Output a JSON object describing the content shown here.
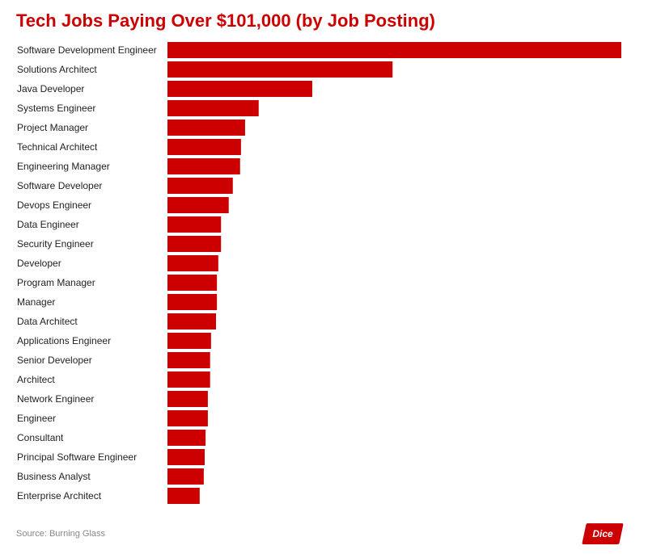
{
  "title": "Tech Jobs Paying Over $101,000 (by Job Posting)",
  "source": "Source: Burning Glass",
  "logo_text": "Dice",
  "colors": {
    "bar": "#cc0000",
    "title": "#cc0000",
    "label": "#222222",
    "source": "#888888"
  },
  "chart_data": {
    "type": "bar",
    "orientation": "horizontal",
    "title": "Tech Jobs Paying Over $101,000 (by Job Posting)",
    "xlabel": "",
    "ylabel": "",
    "grid": false,
    "legend": "none",
    "categories": [
      "Software Development Engineer",
      "Solutions Architect",
      "Java Developer",
      "Systems Engineer",
      "Project Manager",
      "Technical Architect",
      "Engineering Manager",
      "Software Developer",
      "Devops Engineer",
      "Data Engineer",
      "Security Engineer",
      "Developer",
      "Program Manager",
      "Manager",
      "Data Architect",
      "Applications Engineer",
      "Senior Developer",
      "Architect",
      "Network Engineer",
      "Engineer",
      "Consultant",
      "Principal Software Engineer",
      "Business Analyst",
      "Enterprise Architect"
    ],
    "values": [
      100,
      49.6,
      31.9,
      20.1,
      17.1,
      16.2,
      16.0,
      14.4,
      13.5,
      11.8,
      11.8,
      11.2,
      10.9,
      10.9,
      10.7,
      9.6,
      9.4,
      9.4,
      8.9,
      8.9,
      8.4,
      8.2,
      8.0,
      7.1
    ],
    "xlim": [
      0,
      100
    ]
  }
}
